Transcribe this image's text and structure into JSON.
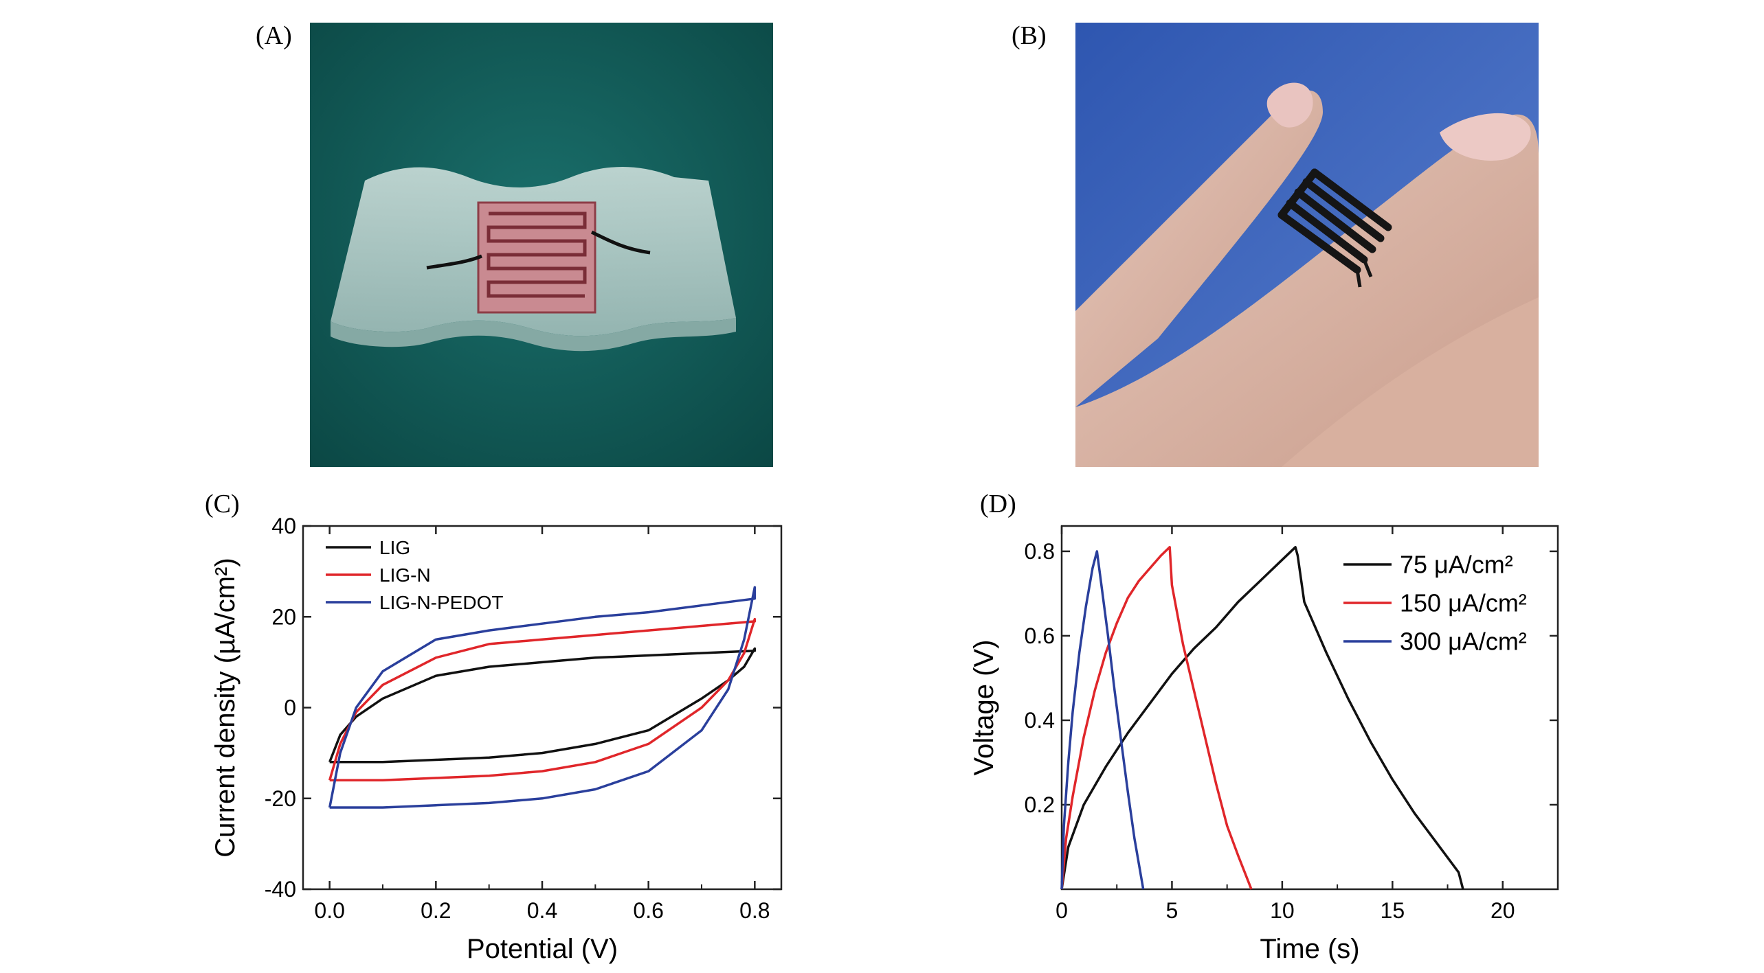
{
  "panels": {
    "a": {
      "letter": "(A)"
    },
    "b": {
      "letter": "(B)"
    },
    "c": {
      "letter": "(C)"
    },
    "d": {
      "letter": "(D)"
    }
  },
  "colors": {
    "black": "#111111",
    "red": "#e0262a",
    "blue": "#2a3f9c",
    "photo_a_bg": "#0f5d5a",
    "photo_b_bg": "#3b62b5"
  },
  "chart_data": [
    {
      "type": "line",
      "panel": "C",
      "xlabel": "Potential (V)",
      "ylabel": "Current density (µA/cm²)",
      "xlim": [
        -0.05,
        0.85
      ],
      "ylim": [
        -40,
        40
      ],
      "xticks": [
        "0.0",
        "0.2",
        "0.4",
        "0.6",
        "0.8"
      ],
      "yticks": [
        "40",
        "20",
        "0",
        "-20",
        "-40"
      ],
      "legend_position": "top-left",
      "series": [
        {
          "name": "LIG",
          "color": "#111111",
          "x": [
            0.0,
            0.02,
            0.05,
            0.1,
            0.2,
            0.3,
            0.4,
            0.5,
            0.6,
            0.7,
            0.8,
            0.8,
            0.78,
            0.75,
            0.7,
            0.6,
            0.5,
            0.4,
            0.3,
            0.2,
            0.1,
            0.05,
            0.0,
            0.0
          ],
          "y": [
            -12,
            -6,
            -2,
            2,
            7,
            9,
            10,
            11,
            11.5,
            12,
            12.5,
            13,
            9,
            6,
            2,
            -5,
            -8,
            -10,
            -11,
            -11.5,
            -12,
            -12,
            -12,
            -12
          ]
        },
        {
          "name": "LIG-N",
          "color": "#e0262a",
          "x": [
            0.0,
            0.02,
            0.05,
            0.1,
            0.2,
            0.3,
            0.4,
            0.5,
            0.6,
            0.7,
            0.8,
            0.8,
            0.78,
            0.75,
            0.7,
            0.6,
            0.5,
            0.4,
            0.3,
            0.2,
            0.1,
            0.05,
            0.0,
            0.0
          ],
          "y": [
            -16,
            -8,
            -1,
            5,
            11,
            14,
            15,
            16,
            17,
            18,
            19,
            19.5,
            12,
            6,
            0,
            -8,
            -12,
            -14,
            -15,
            -15.5,
            -16,
            -16,
            -16,
            -16
          ]
        },
        {
          "name": "LIG-N-PEDOT",
          "color": "#2a3f9c",
          "x": [
            0.0,
            0.02,
            0.05,
            0.1,
            0.2,
            0.3,
            0.4,
            0.5,
            0.6,
            0.7,
            0.8,
            0.8,
            0.78,
            0.75,
            0.7,
            0.6,
            0.5,
            0.4,
            0.3,
            0.2,
            0.1,
            0.05,
            0.0,
            0.0
          ],
          "y": [
            -22,
            -10,
            0,
            8,
            15,
            17,
            18.5,
            20,
            21,
            22.5,
            24,
            26.5,
            15,
            4,
            -5,
            -14,
            -18,
            -20,
            -21,
            -21.5,
            -22,
            -22,
            -22,
            -22
          ]
        }
      ]
    },
    {
      "type": "line",
      "panel": "D",
      "xlabel": "Time (s)",
      "ylabel": "Voltage (V)",
      "xlim": [
        0,
        22.5
      ],
      "ylim": [
        0,
        0.86
      ],
      "xticks": [
        "0",
        "5",
        "10",
        "15",
        "20"
      ],
      "yticks": [
        "0.2",
        "0.4",
        "0.6",
        "0.8"
      ],
      "legend_position": "top-right",
      "series": [
        {
          "name": "75 μA/cm²",
          "color": "#111111",
          "x": [
            0.0,
            0.3,
            1,
            2,
            3,
            4,
            5,
            6,
            7,
            8,
            9,
            10,
            10.6,
            10.7,
            11,
            12,
            13,
            14,
            15,
            16,
            17,
            18,
            18.2
          ],
          "y": [
            0.0,
            0.1,
            0.2,
            0.29,
            0.37,
            0.44,
            0.51,
            0.57,
            0.62,
            0.68,
            0.73,
            0.78,
            0.81,
            0.79,
            0.68,
            0.56,
            0.45,
            0.35,
            0.26,
            0.18,
            0.11,
            0.04,
            0.0
          ]
        },
        {
          "name": "150 μA/cm²",
          "color": "#e0262a",
          "x": [
            0.0,
            0.2,
            0.5,
            1,
            1.5,
            2,
            2.5,
            3,
            3.5,
            4,
            4.5,
            4.9,
            5.0,
            5.5,
            6,
            6.5,
            7,
            7.5,
            8,
            8.6
          ],
          "y": [
            0.0,
            0.12,
            0.22,
            0.36,
            0.47,
            0.56,
            0.63,
            0.69,
            0.73,
            0.76,
            0.79,
            0.81,
            0.72,
            0.58,
            0.47,
            0.36,
            0.25,
            0.15,
            0.08,
            0.0
          ]
        },
        {
          "name": "300 μA/cm²",
          "color": "#2a3f9c",
          "x": [
            0.0,
            0.1,
            0.3,
            0.5,
            0.8,
            1.1,
            1.4,
            1.6,
            1.8,
            2.1,
            2.4,
            2.7,
            3.0,
            3.3,
            3.7
          ],
          "y": [
            0.0,
            0.15,
            0.3,
            0.42,
            0.56,
            0.67,
            0.76,
            0.8,
            0.72,
            0.6,
            0.47,
            0.35,
            0.23,
            0.12,
            0.0
          ]
        }
      ]
    }
  ]
}
